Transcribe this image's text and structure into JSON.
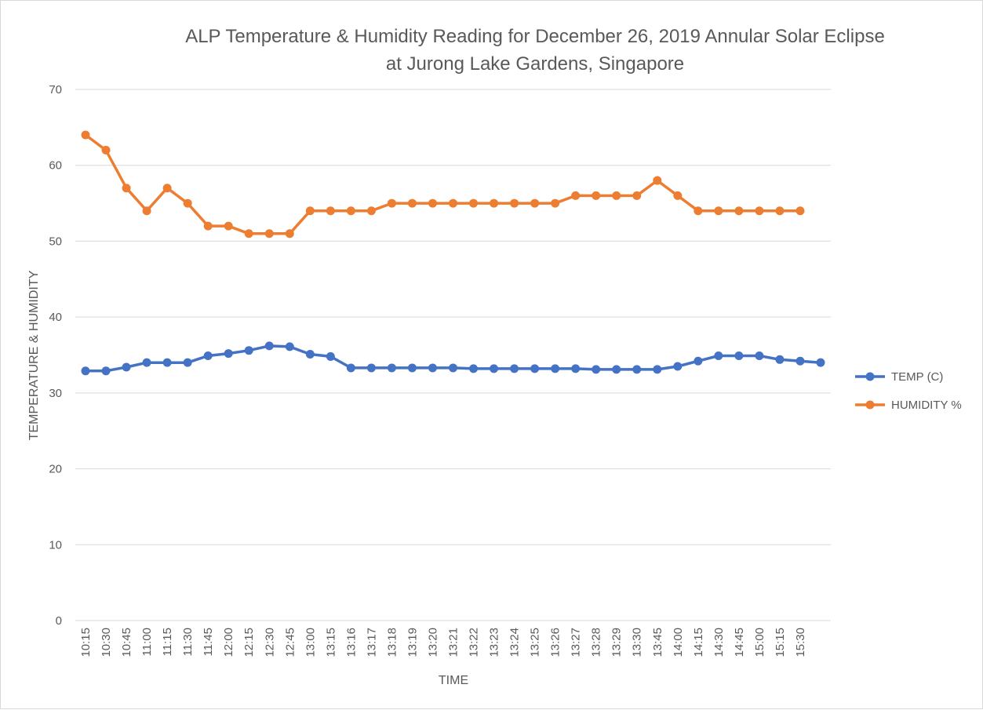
{
  "chart_data": {
    "type": "line",
    "title": "ALP Temperature & Humidity Reading for December 26, 2019 Annular Solar Eclipse",
    "subtitle": "at Jurong Lake Gardens, Singapore",
    "xlabel": "TIME",
    "ylabel": "TEMPERATURE & HUMIDITY",
    "ylim": [
      0,
      70
    ],
    "yticks": [
      0,
      10,
      20,
      30,
      40,
      50,
      60,
      70
    ],
    "grid": true,
    "legend_position": "right",
    "categories": [
      "10:15",
      "10:30",
      "10:45",
      "11:00",
      "11:15",
      "11:30",
      "11:45",
      "12:00",
      "12:15",
      "12:30",
      "12:45",
      "13:00",
      "13:15",
      "13:16",
      "13:17",
      "13:18",
      "13:19",
      "13:20",
      "13:21",
      "13:22",
      "13:23",
      "13:24",
      "13:25",
      "13:26",
      "13:27",
      "13:28",
      "13:29",
      "13:30",
      "13:45",
      "14:00",
      "14:15",
      "14:30",
      "14:45",
      "15:00",
      "15:15",
      "15:30",
      ""
    ],
    "series": [
      {
        "name": "TEMP (C)",
        "color": "#4472c4",
        "values": [
          32.9,
          32.9,
          33.4,
          34.0,
          34.0,
          34.0,
          34.9,
          35.2,
          35.6,
          36.2,
          36.1,
          35.1,
          34.8,
          33.3,
          33.3,
          33.3,
          33.3,
          33.3,
          33.3,
          33.2,
          33.2,
          33.2,
          33.2,
          33.2,
          33.2,
          33.1,
          33.1,
          33.1,
          33.1,
          33.5,
          34.2,
          34.9,
          34.9,
          34.9,
          34.4,
          34.2,
          34.0
        ]
      },
      {
        "name": "HUMIDITY %",
        "color": "#ed7d31",
        "values": [
          64,
          62,
          57,
          54,
          57,
          55,
          52,
          52,
          51,
          51,
          51,
          54,
          54,
          54,
          54,
          55,
          55,
          55,
          55,
          55,
          55,
          55,
          55,
          55,
          56,
          56,
          56,
          56,
          58,
          56,
          54,
          54,
          54,
          54,
          54,
          54,
          null
        ]
      }
    ]
  }
}
